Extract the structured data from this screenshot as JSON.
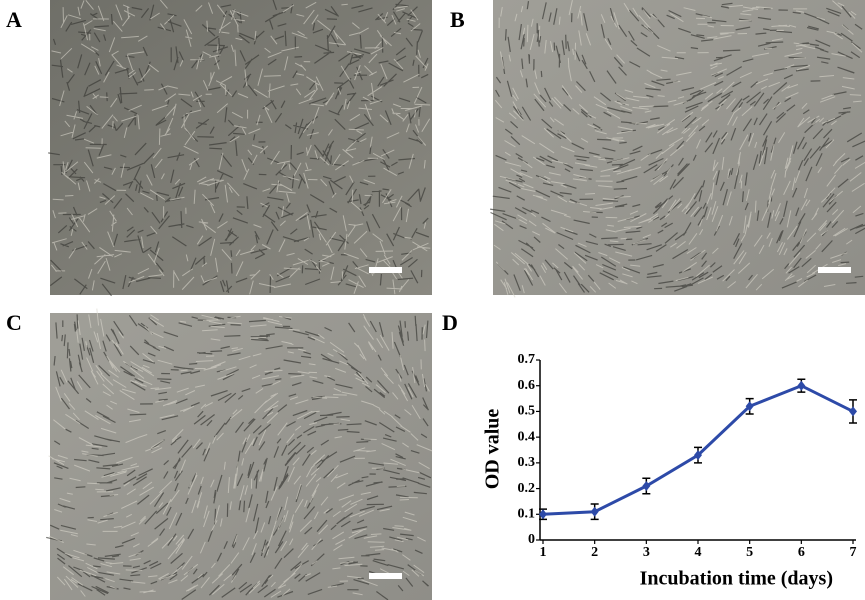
{
  "panel_labels": [
    "A",
    "B",
    "C",
    "D"
  ],
  "chart_data": {
    "type": "line",
    "x": [
      1,
      2,
      3,
      4,
      5,
      6,
      7
    ],
    "series": [
      {
        "color": "#2d4aa8",
        "values": [
          0.1,
          0.11,
          0.21,
          0.33,
          0.52,
          0.6,
          0.5
        ],
        "errors": [
          0.02,
          0.03,
          0.03,
          0.03,
          0.03,
          0.025,
          0.045
        ]
      }
    ],
    "xlim": [
      1,
      7
    ],
    "ylim": [
      0,
      0.7
    ],
    "xticks": [
      1,
      2,
      3,
      4,
      5,
      6,
      7
    ],
    "yticks": [
      0,
      0.1,
      0.2,
      0.3,
      0.4,
      0.5,
      0.6,
      0.7
    ],
    "xlabel": "Incubation time (days)",
    "ylabel": "OD value"
  }
}
